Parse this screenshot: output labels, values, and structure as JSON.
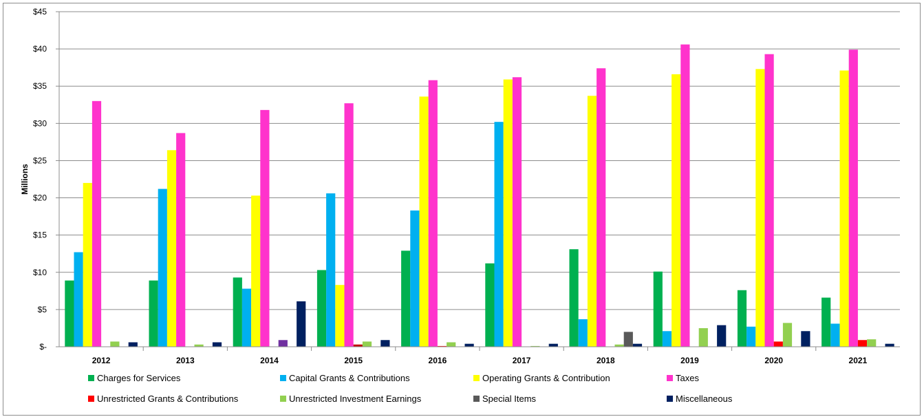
{
  "chart_data": {
    "type": "bar",
    "title": "",
    "xlabel": "",
    "ylabel": "Millions",
    "ylim": [
      0,
      45
    ],
    "ytick_values": [
      0,
      5,
      10,
      15,
      20,
      25,
      30,
      35,
      40,
      45
    ],
    "ytick_labels": [
      "$-",
      "$5",
      "$10",
      "$15",
      "$20",
      "$25",
      "$30",
      "$35",
      "$40",
      "$45"
    ],
    "grid": true,
    "legend_position": "bottom",
    "categories": [
      "2012",
      "2013",
      "2014",
      "2015",
      "2016",
      "2017",
      "2018",
      "2019",
      "2020",
      "2021"
    ],
    "series": [
      {
        "name": "Charges for Services",
        "color": "#00b050",
        "values": [
          8.9,
          8.9,
          9.3,
          10.3,
          12.9,
          11.2,
          13.1,
          10.1,
          7.6,
          6.6
        ]
      },
      {
        "name": "Capital Grants & Contributions",
        "color": "#00b0f0",
        "values": [
          12.7,
          21.2,
          7.8,
          20.6,
          18.3,
          30.2,
          3.7,
          2.1,
          2.7,
          3.1
        ]
      },
      {
        "name": "Operating Grants & Contribution",
        "color": "#ffff00",
        "values": [
          22.0,
          26.4,
          20.3,
          8.3,
          33.6,
          35.9,
          33.7,
          36.6,
          37.3,
          37.1
        ]
      },
      {
        "name": "Taxes",
        "color": "#ff33cc",
        "values": [
          33.0,
          28.7,
          31.8,
          32.7,
          35.8,
          36.2,
          37.4,
          40.6,
          39.3,
          39.9
        ]
      },
      {
        "name": "Unrestricted Grants & Contributions",
        "color": "#ff0000",
        "values": [
          0,
          0,
          0,
          0.3,
          0.1,
          0,
          0,
          0,
          0.7,
          0.9
        ]
      },
      {
        "name": "Unrestricted Investment Earnings",
        "color": "#92d050",
        "values": [
          0.7,
          0.3,
          0.9,
          0.7,
          0.6,
          0.1,
          0.3,
          2.5,
          3.2,
          1.0
        ]
      },
      {
        "name": "Special Items",
        "color": "#595959",
        "values": [
          0,
          0,
          0,
          0,
          0,
          0,
          2.0,
          0,
          0,
          0
        ]
      },
      {
        "name": "Miscellaneous",
        "color": "#002060",
        "values": [
          0.6,
          0.6,
          6.1,
          0.9,
          0.4,
          0.4,
          0.4,
          2.9,
          2.1,
          0.4
        ]
      }
    ],
    "bar_overrides": [
      {
        "series": 5,
        "category": 2,
        "color": "#7030a0"
      },
      {
        "series": 4,
        "category": 3,
        "color": "#c00000"
      }
    ]
  }
}
